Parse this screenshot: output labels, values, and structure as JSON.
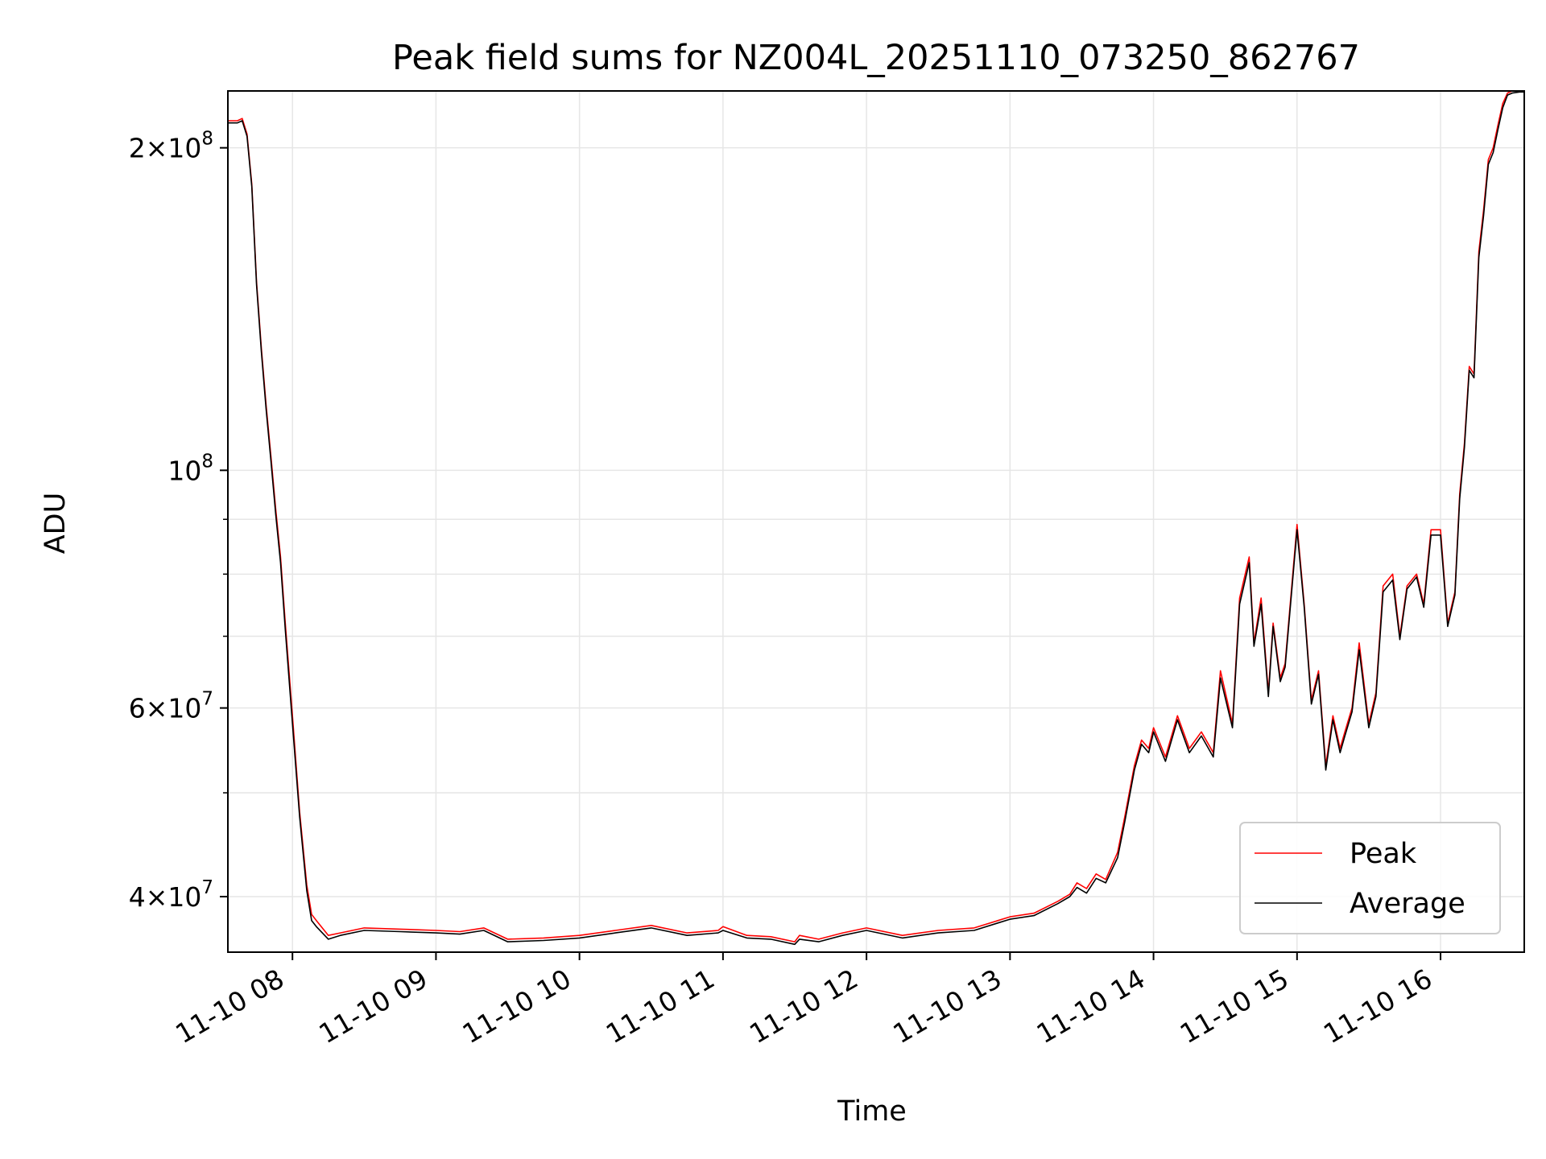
{
  "chart_data": {
    "type": "line",
    "title": "Peak field sums for NZ004L_20251110_073250_862767",
    "xlabel": "Time",
    "ylabel": "ADU",
    "yscale": "log",
    "grid": true,
    "legend_position": "lower-right",
    "xlim": [
      "2025-11-10 07:33",
      "2025-11-10 16:35"
    ],
    "ylim": [
      35500000,
      226000000
    ],
    "x_ticks": [
      {
        "value": "2025-11-10 08:00",
        "label": "11-10 08"
      },
      {
        "value": "2025-11-10 09:00",
        "label": "11-10 09"
      },
      {
        "value": "2025-11-10 10:00",
        "label": "11-10 10"
      },
      {
        "value": "2025-11-10 11:00",
        "label": "11-10 11"
      },
      {
        "value": "2025-11-10 12:00",
        "label": "11-10 12"
      },
      {
        "value": "2025-11-10 13:00",
        "label": "11-10 13"
      },
      {
        "value": "2025-11-10 14:00",
        "label": "11-10 14"
      },
      {
        "value": "2025-11-10 15:00",
        "label": "11-10 15"
      },
      {
        "value": "2025-11-10 16:00",
        "label": "11-10 16"
      }
    ],
    "y_major_ticks": [
      {
        "value": 40000000,
        "mantissa": "4",
        "exponent": "7"
      },
      {
        "value": 60000000,
        "mantissa": "6",
        "exponent": "7"
      },
      {
        "value": 100000000,
        "mantissa": "",
        "exponent": "8"
      },
      {
        "value": 200000000,
        "mantissa": "2",
        "exponent": "8"
      }
    ],
    "y_minor_ticks": [
      50000000,
      70000000,
      80000000,
      90000000
    ],
    "series": [
      {
        "name": "Peak",
        "color": "#ff0000",
        "x": [
          "2025-11-10 07:33",
          "2025-11-10 07:37",
          "2025-11-10 07:39",
          "2025-11-10 07:41",
          "2025-11-10 07:43",
          "2025-11-10 07:45",
          "2025-11-10 07:47",
          "2025-11-10 07:49",
          "2025-11-10 07:51",
          "2025-11-10 07:53",
          "2025-11-10 07:55",
          "2025-11-10 07:57",
          "2025-11-10 08:00",
          "2025-11-10 08:03",
          "2025-11-10 08:06",
          "2025-11-10 08:08",
          "2025-11-10 08:10",
          "2025-11-10 08:15",
          "2025-11-10 08:20",
          "2025-11-10 08:30",
          "2025-11-10 08:45",
          "2025-11-10 09:00",
          "2025-11-10 09:10",
          "2025-11-10 09:20",
          "2025-11-10 09:30",
          "2025-11-10 09:45",
          "2025-11-10 10:00",
          "2025-11-10 10:15",
          "2025-11-10 10:30",
          "2025-11-10 10:45",
          "2025-11-10 10:58",
          "2025-11-10 11:00",
          "2025-11-10 11:10",
          "2025-11-10 11:20",
          "2025-11-10 11:30",
          "2025-11-10 11:32",
          "2025-11-10 11:40",
          "2025-11-10 11:50",
          "2025-11-10 12:00",
          "2025-11-10 12:15",
          "2025-11-10 12:30",
          "2025-11-10 12:45",
          "2025-11-10 12:55",
          "2025-11-10 13:00",
          "2025-11-10 13:10",
          "2025-11-10 13:20",
          "2025-11-10 13:25",
          "2025-11-10 13:28",
          "2025-11-10 13:32",
          "2025-11-10 13:36",
          "2025-11-10 13:40",
          "2025-11-10 13:45",
          "2025-11-10 13:48",
          "2025-11-10 13:52",
          "2025-11-10 13:55",
          "2025-11-10 13:58",
          "2025-11-10 14:00",
          "2025-11-10 14:05",
          "2025-11-10 14:10",
          "2025-11-10 14:15",
          "2025-11-10 14:20",
          "2025-11-10 14:25",
          "2025-11-10 14:28",
          "2025-11-10 14:33",
          "2025-11-10 14:36",
          "2025-11-10 14:40",
          "2025-11-10 14:42",
          "2025-11-10 14:45",
          "2025-11-10 14:48",
          "2025-11-10 14:50",
          "2025-11-10 14:53",
          "2025-11-10 14:55",
          "2025-11-10 15:00",
          "2025-11-10 15:03",
          "2025-11-10 15:06",
          "2025-11-10 15:09",
          "2025-11-10 15:12",
          "2025-11-10 15:15",
          "2025-11-10 15:18",
          "2025-11-10 15:20",
          "2025-11-10 15:23",
          "2025-11-10 15:26",
          "2025-11-10 15:30",
          "2025-11-10 15:33",
          "2025-11-10 15:36",
          "2025-11-10 15:40",
          "2025-11-10 15:43",
          "2025-11-10 15:46",
          "2025-11-10 15:50",
          "2025-11-10 15:53",
          "2025-11-10 15:56",
          "2025-11-10 16:00",
          "2025-11-10 16:03",
          "2025-11-10 16:06",
          "2025-11-10 16:08",
          "2025-11-10 16:10",
          "2025-11-10 16:12",
          "2025-11-10 16:14",
          "2025-11-10 16:16",
          "2025-11-10 16:18",
          "2025-11-10 16:20",
          "2025-11-10 16:22",
          "2025-11-10 16:24",
          "2025-11-10 16:26",
          "2025-11-10 16:28",
          "2025-11-10 16:30",
          "2025-11-10 16:33",
          "2025-11-10 16:35"
        ],
        "y": [
          212000000,
          212000000,
          213000000,
          206000000,
          185000000,
          150000000,
          130000000,
          115000000,
          103000000,
          92000000,
          83000000,
          72000000,
          59000000,
          48000000,
          41000000,
          38500000,
          38000000,
          36800000,
          37000000,
          37400000,
          37300000,
          37200000,
          37100000,
          37400000,
          36500000,
          36600000,
          36800000,
          37200000,
          37600000,
          37000000,
          37200000,
          37500000,
          36800000,
          36700000,
          36300000,
          36800000,
          36500000,
          37000000,
          37400000,
          36800000,
          37200000,
          37400000,
          38000000,
          38300000,
          38600000,
          39600000,
          40200000,
          41200000,
          40700000,
          42000000,
          41500000,
          44000000,
          47500000,
          53000000,
          56000000,
          55000000,
          57500000,
          54000000,
          59000000,
          55000000,
          57000000,
          54500000,
          65000000,
          58000000,
          76000000,
          83000000,
          69000000,
          76000000,
          62000000,
          72000000,
          64000000,
          66000000,
          89000000,
          75000000,
          61000000,
          65000000,
          53000000,
          59000000,
          55000000,
          57000000,
          60000000,
          69000000,
          58000000,
          62000000,
          78000000,
          80000000,
          70000000,
          78000000,
          80000000,
          75000000,
          88000000,
          88000000,
          72000000,
          77000000,
          95000000,
          106000000,
          125000000,
          123000000,
          160000000,
          175000000,
          195000000,
          200000000,
          210000000,
          220000000,
          225000000,
          226000000,
          226000000,
          226000000
        ]
      },
      {
        "name": "Average",
        "color": "#000000",
        "x": [
          "2025-11-10 07:33",
          "2025-11-10 07:37",
          "2025-11-10 07:39",
          "2025-11-10 07:41",
          "2025-11-10 07:43",
          "2025-11-10 07:45",
          "2025-11-10 07:47",
          "2025-11-10 07:49",
          "2025-11-10 07:51",
          "2025-11-10 07:53",
          "2025-11-10 07:55",
          "2025-11-10 07:57",
          "2025-11-10 08:00",
          "2025-11-10 08:03",
          "2025-11-10 08:06",
          "2025-11-10 08:08",
          "2025-11-10 08:10",
          "2025-11-10 08:15",
          "2025-11-10 08:20",
          "2025-11-10 08:30",
          "2025-11-10 08:45",
          "2025-11-10 09:00",
          "2025-11-10 09:10",
          "2025-11-10 09:20",
          "2025-11-10 09:30",
          "2025-11-10 09:45",
          "2025-11-10 10:00",
          "2025-11-10 10:15",
          "2025-11-10 10:30",
          "2025-11-10 10:45",
          "2025-11-10 10:58",
          "2025-11-10 11:00",
          "2025-11-10 11:10",
          "2025-11-10 11:20",
          "2025-11-10 11:30",
          "2025-11-10 11:32",
          "2025-11-10 11:40",
          "2025-11-10 11:50",
          "2025-11-10 12:00",
          "2025-11-10 12:15",
          "2025-11-10 12:30",
          "2025-11-10 12:45",
          "2025-11-10 12:55",
          "2025-11-10 13:00",
          "2025-11-10 13:10",
          "2025-11-10 13:20",
          "2025-11-10 13:25",
          "2025-11-10 13:28",
          "2025-11-10 13:32",
          "2025-11-10 13:36",
          "2025-11-10 13:40",
          "2025-11-10 13:45",
          "2025-11-10 13:48",
          "2025-11-10 13:52",
          "2025-11-10 13:55",
          "2025-11-10 13:58",
          "2025-11-10 14:00",
          "2025-11-10 14:05",
          "2025-11-10 14:10",
          "2025-11-10 14:15",
          "2025-11-10 14:20",
          "2025-11-10 14:25",
          "2025-11-10 14:28",
          "2025-11-10 14:33",
          "2025-11-10 14:36",
          "2025-11-10 14:40",
          "2025-11-10 14:42",
          "2025-11-10 14:45",
          "2025-11-10 14:48",
          "2025-11-10 14:50",
          "2025-11-10 14:53",
          "2025-11-10 14:55",
          "2025-11-10 15:00",
          "2025-11-10 15:03",
          "2025-11-10 15:06",
          "2025-11-10 15:09",
          "2025-11-10 15:12",
          "2025-11-10 15:15",
          "2025-11-10 15:18",
          "2025-11-10 15:20",
          "2025-11-10 15:23",
          "2025-11-10 15:26",
          "2025-11-10 15:30",
          "2025-11-10 15:33",
          "2025-11-10 15:36",
          "2025-11-10 15:40",
          "2025-11-10 15:43",
          "2025-11-10 15:46",
          "2025-11-10 15:50",
          "2025-11-10 15:53",
          "2025-11-10 15:56",
          "2025-11-10 16:00",
          "2025-11-10 16:03",
          "2025-11-10 16:06",
          "2025-11-10 16:08",
          "2025-11-10 16:10",
          "2025-11-10 16:12",
          "2025-11-10 16:14",
          "2025-11-10 16:16",
          "2025-11-10 16:18",
          "2025-11-10 16:20",
          "2025-11-10 16:22",
          "2025-11-10 16:24",
          "2025-11-10 16:26",
          "2025-11-10 16:28",
          "2025-11-10 16:30",
          "2025-11-10 16:33",
          "2025-11-10 16:35"
        ],
        "y": [
          211000000,
          211000000,
          212000000,
          205000000,
          184000000,
          149000000,
          129000000,
          114000000,
          102000000,
          91000000,
          82000000,
          71000000,
          58000000,
          47500000,
          40500000,
          38000000,
          37500000,
          36500000,
          36800000,
          37200000,
          37100000,
          37000000,
          36900000,
          37200000,
          36300000,
          36400000,
          36600000,
          37000000,
          37400000,
          36800000,
          37000000,
          37200000,
          36600000,
          36500000,
          36100000,
          36500000,
          36300000,
          36800000,
          37200000,
          36600000,
          37000000,
          37200000,
          37800000,
          38100000,
          38400000,
          39400000,
          40000000,
          40800000,
          40300000,
          41600000,
          41200000,
          43500000,
          47000000,
          52500000,
          55500000,
          54500000,
          57000000,
          53500000,
          58500000,
          54500000,
          56500000,
          54000000,
          64000000,
          57500000,
          75000000,
          82000000,
          68500000,
          75000000,
          61500000,
          71500000,
          63500000,
          65500000,
          88000000,
          74500000,
          60500000,
          64500000,
          52500000,
          58500000,
          54500000,
          56500000,
          59500000,
          68000000,
          57500000,
          61500000,
          77000000,
          79000000,
          69500000,
          77500000,
          79500000,
          74500000,
          87000000,
          87000000,
          71500000,
          76500000,
          94000000,
          105000000,
          124000000,
          122000000,
          158000000,
          173000000,
          193000000,
          198000000,
          208000000,
          218000000,
          224000000,
          225000000,
          225500000,
          225500000
        ]
      }
    ]
  }
}
